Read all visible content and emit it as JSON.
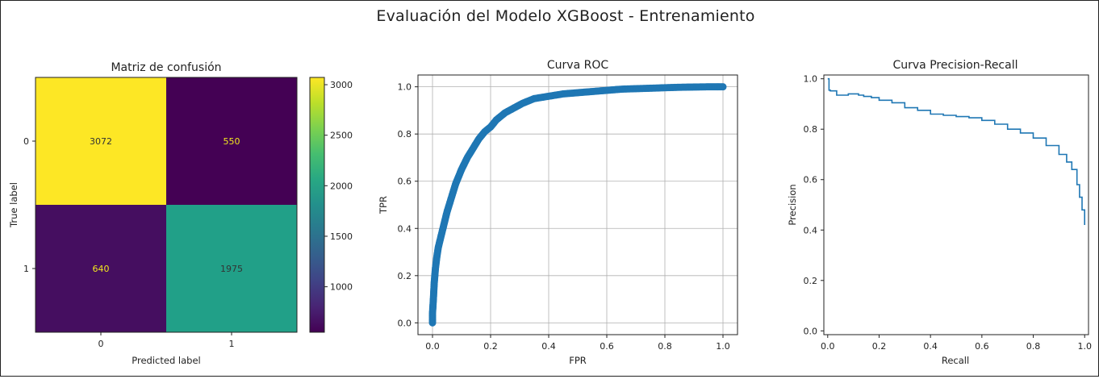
{
  "figure": {
    "title": "Evaluación del Modelo XGBoost - Entrenamiento"
  },
  "chart_data": [
    {
      "type": "heatmap",
      "title": "Matriz de confusión",
      "xlabel": "Predicted label",
      "ylabel": "True label",
      "x_categories": [
        "0",
        "1"
      ],
      "y_categories": [
        "0",
        "1"
      ],
      "matrix": [
        [
          3072,
          550
        ],
        [
          640,
          1975
        ]
      ],
      "colormap": "viridis",
      "colorbar": {
        "ticks": [
          "3000",
          "2500",
          "2000",
          "1500",
          "1000"
        ],
        "range": [
          550,
          3072
        ]
      },
      "cell_text_colors": {
        "dark": "#f2e81e",
        "light": "#333333"
      }
    },
    {
      "type": "scatter",
      "title": "Curva ROC",
      "xlabel": "FPR",
      "ylabel": "TPR",
      "xlim": [
        0,
        1
      ],
      "ylim": [
        0,
        1
      ],
      "xticks": [
        "0.0",
        "0.2",
        "0.4",
        "0.6",
        "0.8",
        "1.0"
      ],
      "yticks": [
        "0.0",
        "0.2",
        "0.4",
        "0.6",
        "0.8",
        "1.0"
      ],
      "grid": true,
      "color": "#1f77b4",
      "points": [
        [
          0.0,
          0.0
        ],
        [
          0.0,
          0.04
        ],
        [
          0.003,
          0.1
        ],
        [
          0.006,
          0.17
        ],
        [
          0.01,
          0.23
        ],
        [
          0.015,
          0.28
        ],
        [
          0.02,
          0.32
        ],
        [
          0.03,
          0.37
        ],
        [
          0.04,
          0.42
        ],
        [
          0.05,
          0.47
        ],
        [
          0.06,
          0.51
        ],
        [
          0.07,
          0.55
        ],
        [
          0.08,
          0.59
        ],
        [
          0.09,
          0.62
        ],
        [
          0.1,
          0.65
        ],
        [
          0.12,
          0.7
        ],
        [
          0.14,
          0.74
        ],
        [
          0.16,
          0.78
        ],
        [
          0.18,
          0.81
        ],
        [
          0.2,
          0.83
        ],
        [
          0.22,
          0.86
        ],
        [
          0.25,
          0.89
        ],
        [
          0.28,
          0.91
        ],
        [
          0.31,
          0.93
        ],
        [
          0.35,
          0.95
        ],
        [
          0.4,
          0.96
        ],
        [
          0.45,
          0.97
        ],
        [
          0.5,
          0.975
        ],
        [
          0.55,
          0.98
        ],
        [
          0.6,
          0.985
        ],
        [
          0.65,
          0.99
        ],
        [
          0.7,
          0.992
        ],
        [
          0.75,
          0.994
        ],
        [
          0.8,
          0.996
        ],
        [
          0.85,
          0.998
        ],
        [
          0.9,
          0.999
        ],
        [
          0.95,
          1.0
        ],
        [
          1.0,
          1.0
        ]
      ]
    },
    {
      "type": "line",
      "title": "Curva Precision-Recall",
      "xlabel": "Recall",
      "ylabel": "Precision",
      "xlim": [
        0,
        1
      ],
      "ylim": [
        0,
        1
      ],
      "xticks": [
        "0.0",
        "0.2",
        "0.4",
        "0.6",
        "0.8",
        "1.0"
      ],
      "yticks": [
        "0.0",
        "0.2",
        "0.4",
        "0.6",
        "0.8",
        "1.0"
      ],
      "grid": false,
      "color": "#1f77b4",
      "points": [
        [
          0.0,
          1.0
        ],
        [
          0.003,
          1.0
        ],
        [
          0.005,
          0.955
        ],
        [
          0.01,
          0.952
        ],
        [
          0.03,
          0.952
        ],
        [
          0.035,
          0.935
        ],
        [
          0.06,
          0.935
        ],
        [
          0.08,
          0.94
        ],
        [
          0.1,
          0.94
        ],
        [
          0.12,
          0.935
        ],
        [
          0.14,
          0.93
        ],
        [
          0.17,
          0.925
        ],
        [
          0.2,
          0.915
        ],
        [
          0.25,
          0.905
        ],
        [
          0.3,
          0.885
        ],
        [
          0.35,
          0.875
        ],
        [
          0.4,
          0.86
        ],
        [
          0.45,
          0.855
        ],
        [
          0.5,
          0.85
        ],
        [
          0.55,
          0.845
        ],
        [
          0.6,
          0.835
        ],
        [
          0.65,
          0.82
        ],
        [
          0.7,
          0.8
        ],
        [
          0.75,
          0.785
        ],
        [
          0.8,
          0.765
        ],
        [
          0.85,
          0.735
        ],
        [
          0.9,
          0.7
        ],
        [
          0.93,
          0.67
        ],
        [
          0.95,
          0.64
        ],
        [
          0.97,
          0.58
        ],
        [
          0.98,
          0.53
        ],
        [
          0.99,
          0.48
        ],
        [
          1.0,
          0.42
        ]
      ]
    }
  ]
}
